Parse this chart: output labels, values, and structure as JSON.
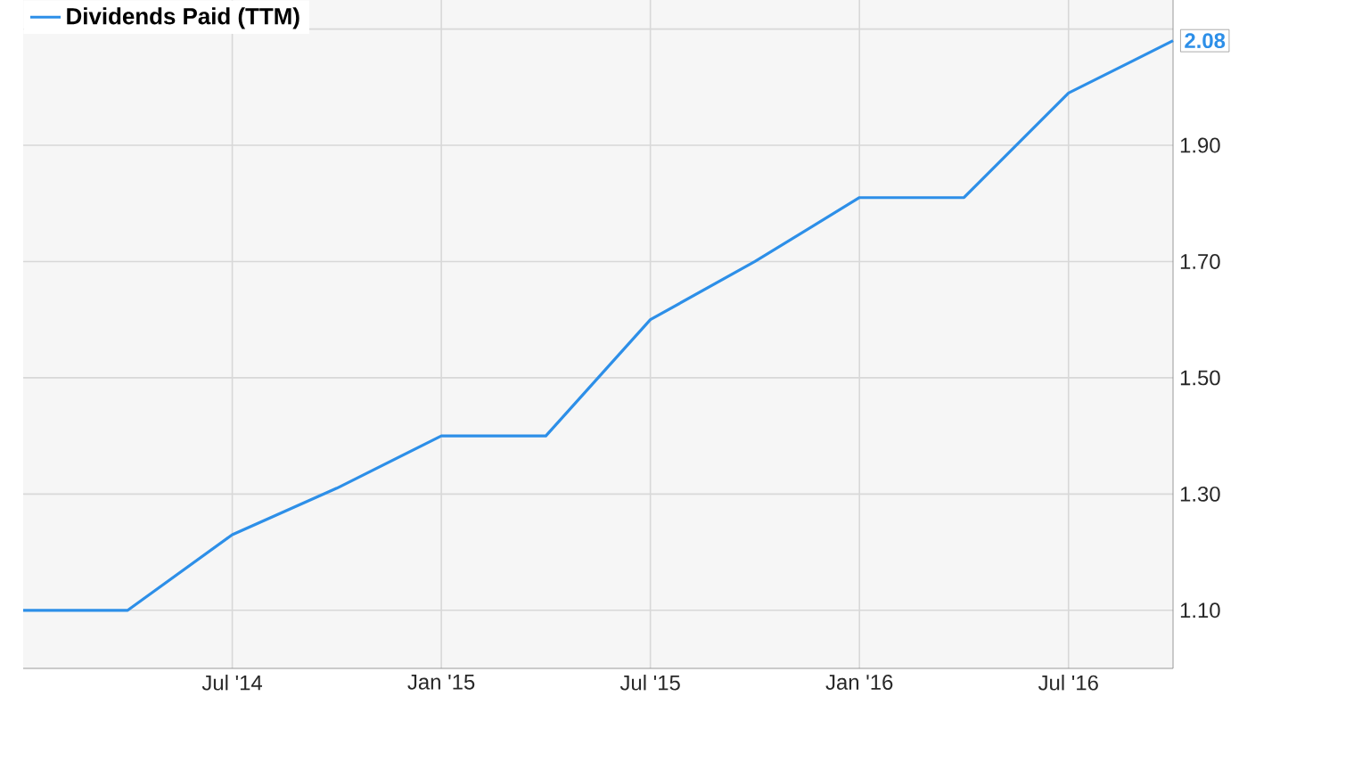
{
  "chart_data": {
    "type": "line",
    "x": [
      "2014-01",
      "2014-04",
      "2014-07",
      "2014-10",
      "2015-01",
      "2015-04",
      "2015-07",
      "2015-10",
      "2016-01",
      "2016-04",
      "2016-07",
      "2016-10"
    ],
    "series": [
      {
        "name": "Dividends Paid (TTM)",
        "color": "#2d8fe8",
        "values": [
          1.1,
          1.1,
          1.23,
          1.31,
          1.4,
          1.4,
          1.6,
          1.7,
          1.81,
          1.81,
          1.99,
          2.08
        ],
        "value_labels": [
          null,
          null,
          null,
          null,
          null,
          null,
          null,
          null,
          null,
          null,
          null,
          "2.08"
        ]
      }
    ],
    "xlim": [
      "2014-01",
      "2016-10"
    ],
    "xticks": [
      {
        "value": "2014-07",
        "label": "Jul '14"
      },
      {
        "value": "2015-01",
        "label": "Jan '15"
      },
      {
        "value": "2015-07",
        "label": "Jul '15"
      },
      {
        "value": "2016-01",
        "label": "Jan '16"
      },
      {
        "value": "2016-07",
        "label": "Jul '16"
      }
    ],
    "ylim": [
      1.0,
      2.15
    ],
    "yticks": [
      {
        "value": 1.1,
        "label": "1.10"
      },
      {
        "value": 1.3,
        "label": "1.30"
      },
      {
        "value": 1.5,
        "label": "1.50"
      },
      {
        "value": 1.7,
        "label": "1.70"
      },
      {
        "value": 1.9,
        "label": "1.90"
      },
      {
        "value": 2.1,
        "label": null
      }
    ],
    "grid": true,
    "legend": "top left",
    "marker": "none",
    "line_style": "solid"
  }
}
